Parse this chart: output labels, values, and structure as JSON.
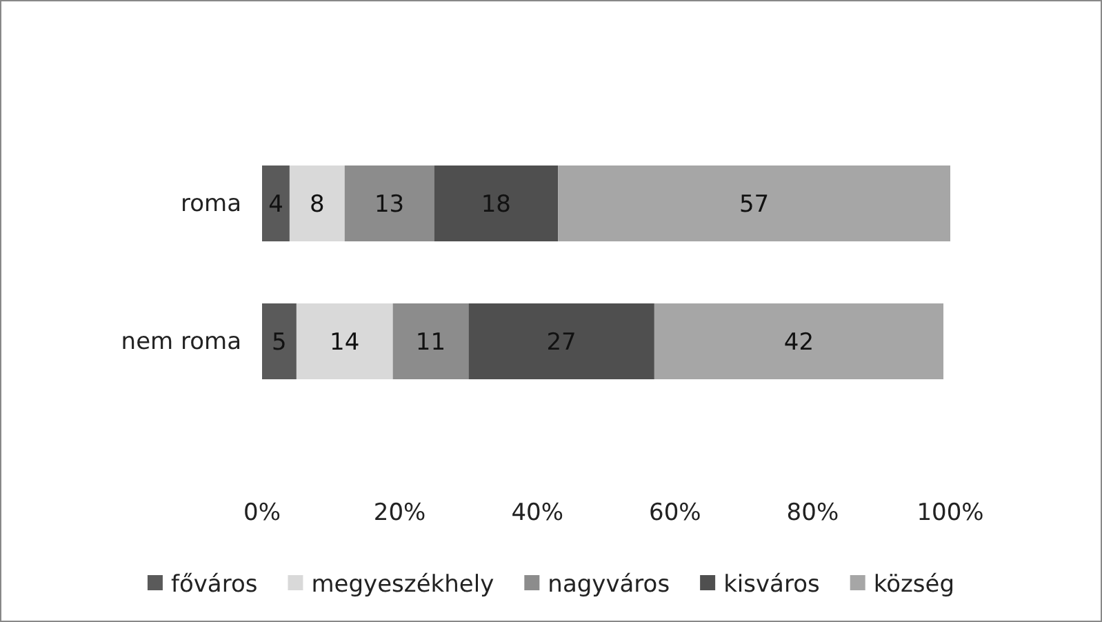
{
  "chart_data": {
    "type": "bar",
    "orientation": "horizontal",
    "stacked": true,
    "categories": [
      "roma",
      "nem roma"
    ],
    "series": [
      {
        "name": "főváros",
        "color": "#5a5a5a",
        "values": [
          4,
          5
        ]
      },
      {
        "name": "megyeszékhely",
        "color": "#d9d9d9",
        "values": [
          8,
          14
        ]
      },
      {
        "name": "nagyváros",
        "color": "#8c8c8c",
        "values": [
          13,
          11
        ]
      },
      {
        "name": "kisváros",
        "color": "#4f4f4f",
        "values": [
          18,
          27
        ]
      },
      {
        "name": "község",
        "color": "#a6a6a6",
        "values": [
          57,
          42
        ]
      }
    ],
    "xlim": [
      0,
      100
    ],
    "xticks": [
      {
        "value": 0,
        "label": "0%"
      },
      {
        "value": 20,
        "label": "20%"
      },
      {
        "value": 40,
        "label": "40%"
      },
      {
        "value": 60,
        "label": "60%"
      },
      {
        "value": 80,
        "label": "80%"
      },
      {
        "value": 100,
        "label": "100%"
      }
    ],
    "data_labels": true,
    "legend": "bottom",
    "grid": false
  }
}
